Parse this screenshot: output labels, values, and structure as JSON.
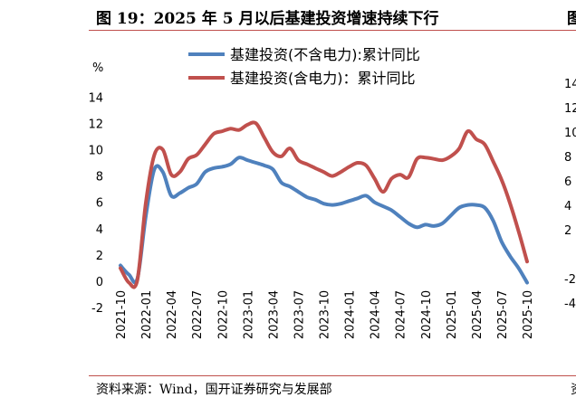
{
  "figure": {
    "title": "图 19：2025 年 5 月以后基建投资增速持续下行",
    "title_right_fragment": "图",
    "source": "资料来源：Wind，国开证券研究与发展部",
    "source_right_fragment": "资"
  },
  "right_panel_fragment": {
    "tick_labels": [
      "14",
      "12",
      "10",
      "8",
      "6",
      "4",
      "2",
      "-2",
      "-4"
    ]
  },
  "chart_data": {
    "type": "line",
    "title": "",
    "xlabel": "",
    "ylabel": "%",
    "ylim": [
      -2,
      14
    ],
    "yticks": [
      -2,
      0,
      2,
      4,
      6,
      8,
      10,
      12,
      14
    ],
    "grid": false,
    "legend_position": "top-center",
    "x_tick_labels": [
      "2021-10",
      "2022-01",
      "2022-04",
      "2022-07",
      "2022-10",
      "2023-01",
      "2023-04",
      "2023-07",
      "2023-10",
      "2024-01",
      "2024-04",
      "2024-07",
      "2024-10",
      "2025-01",
      "2025-04",
      "2025-07",
      "2025-10"
    ],
    "x": [
      "2021-10",
      "2021-11",
      "2021-12",
      "2022-01",
      "2022-02",
      "2022-03",
      "2022-04",
      "2022-05",
      "2022-06",
      "2022-07",
      "2022-08",
      "2022-09",
      "2022-10",
      "2022-11",
      "2022-12",
      "2023-01",
      "2023-02",
      "2023-03",
      "2023-04",
      "2023-05",
      "2023-06",
      "2023-07",
      "2023-08",
      "2023-09",
      "2023-10",
      "2023-11",
      "2023-12",
      "2024-01",
      "2024-02",
      "2024-03",
      "2024-04",
      "2024-05",
      "2024-06",
      "2024-07",
      "2024-08",
      "2024-09",
      "2024-10",
      "2024-11",
      "2024-12",
      "2025-01",
      "2025-02",
      "2025-03",
      "2025-04",
      "2025-05",
      "2025-06",
      "2025-07",
      "2025-08",
      "2025-09",
      "2025-10"
    ],
    "series": [
      {
        "name": "基建投资(不含电力):累计同比",
        "color": "#4f81bd",
        "values": [
          1.2,
          0.5,
          0.2,
          5.0,
          8.5,
          8.3,
          6.5,
          6.7,
          7.1,
          7.4,
          8.3,
          8.6,
          8.7,
          8.9,
          9.4,
          9.2,
          9.0,
          8.8,
          8.5,
          7.5,
          7.2,
          6.8,
          6.4,
          6.2,
          5.9,
          5.8,
          5.9,
          6.1,
          6.3,
          6.5,
          6.0,
          5.7,
          5.4,
          4.9,
          4.4,
          4.1,
          4.3,
          4.2,
          4.4,
          5.0,
          5.6,
          5.8,
          5.8,
          5.6,
          4.6,
          3.0,
          1.9,
          1.0,
          -0.1
        ]
      },
      {
        "name": "基建投资(含电力)：累计同比",
        "color": "#c0504d",
        "values": [
          1.0,
          -0.1,
          0.1,
          6.0,
          9.6,
          10.0,
          8.1,
          8.3,
          9.3,
          9.6,
          10.4,
          11.2,
          11.4,
          11.6,
          11.5,
          11.9,
          12.0,
          10.9,
          9.8,
          9.5,
          10.1,
          9.2,
          8.9,
          8.6,
          8.3,
          8.0,
          8.3,
          8.7,
          9.0,
          8.8,
          7.8,
          6.8,
          7.8,
          8.1,
          7.9,
          9.3,
          9.4,
          9.3,
          9.2,
          9.5,
          10.1,
          11.4,
          10.8,
          10.4,
          9.1,
          7.7,
          5.9,
          3.8,
          1.5
        ]
      }
    ]
  }
}
